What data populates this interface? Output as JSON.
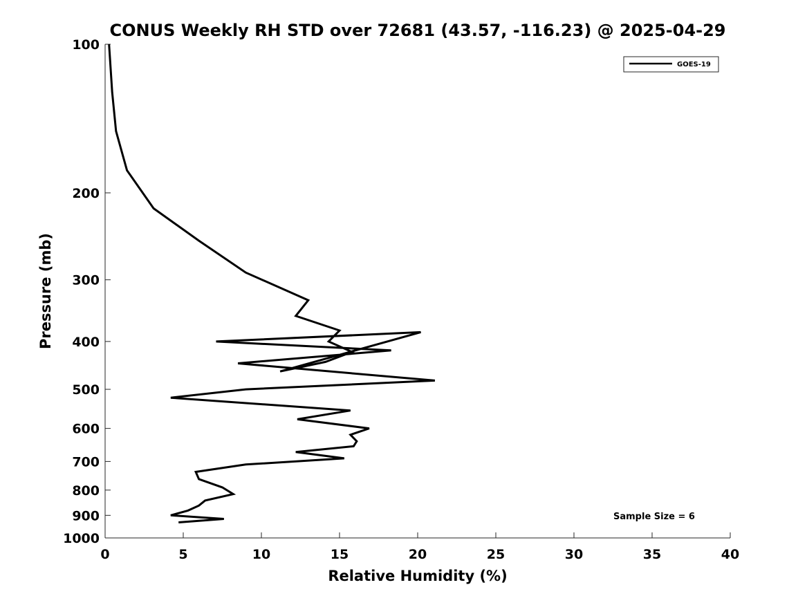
{
  "chart_data": {
    "type": "line",
    "title": "CONUS Weekly RH STD over 72681 (43.57, -116.23) @ 2025-04-29",
    "xlabel": "Relative Humidity (%)",
    "ylabel": "Pressure (mb)",
    "xlim": [
      0,
      40
    ],
    "ylim": [
      100,
      1000
    ],
    "yscale": "log",
    "y_reversed": true,
    "grid": false,
    "x_ticks": [
      "0",
      "5",
      "10",
      "15",
      "20",
      "25",
      "30",
      "35",
      "40"
    ],
    "y_ticks": [
      "100",
      "200",
      "300",
      "400",
      "500",
      "600",
      "700",
      "800",
      "900",
      "1000"
    ],
    "legend_position": "top-right",
    "annotation": "Sample Size = 6",
    "series": [
      {
        "name": "GOES-19",
        "color": "#000000",
        "points": [
          [
            0.25,
            100
          ],
          [
            0.45,
            125
          ],
          [
            0.7,
            150
          ],
          [
            1.4,
            180
          ],
          [
            3.1,
            215
          ],
          [
            6.0,
            250
          ],
          [
            9.0,
            290
          ],
          [
            13.0,
            330
          ],
          [
            12.2,
            355
          ],
          [
            15.0,
            380
          ],
          [
            14.3,
            400
          ],
          [
            15.8,
            420
          ],
          [
            14.1,
            440
          ],
          [
            11.2,
            460
          ],
          [
            20.2,
            383
          ],
          [
            7.1,
            400
          ],
          [
            18.3,
            417
          ],
          [
            8.5,
            443
          ],
          [
            21.1,
            480
          ],
          [
            9.0,
            500
          ],
          [
            4.2,
            520
          ],
          [
            15.7,
            552
          ],
          [
            12.3,
            575
          ],
          [
            16.9,
            600
          ],
          [
            15.7,
            618
          ],
          [
            16.1,
            637
          ],
          [
            15.9,
            652
          ],
          [
            12.2,
            670
          ],
          [
            15.3,
            690
          ],
          [
            9.0,
            710
          ],
          [
            5.8,
            735
          ],
          [
            6.0,
            760
          ],
          [
            7.5,
            790
          ],
          [
            8.2,
            815
          ],
          [
            6.4,
            840
          ],
          [
            6.0,
            860
          ],
          [
            5.3,
            880
          ],
          [
            4.2,
            900
          ],
          [
            7.6,
            915
          ],
          [
            4.7,
            930
          ]
        ]
      }
    ]
  }
}
